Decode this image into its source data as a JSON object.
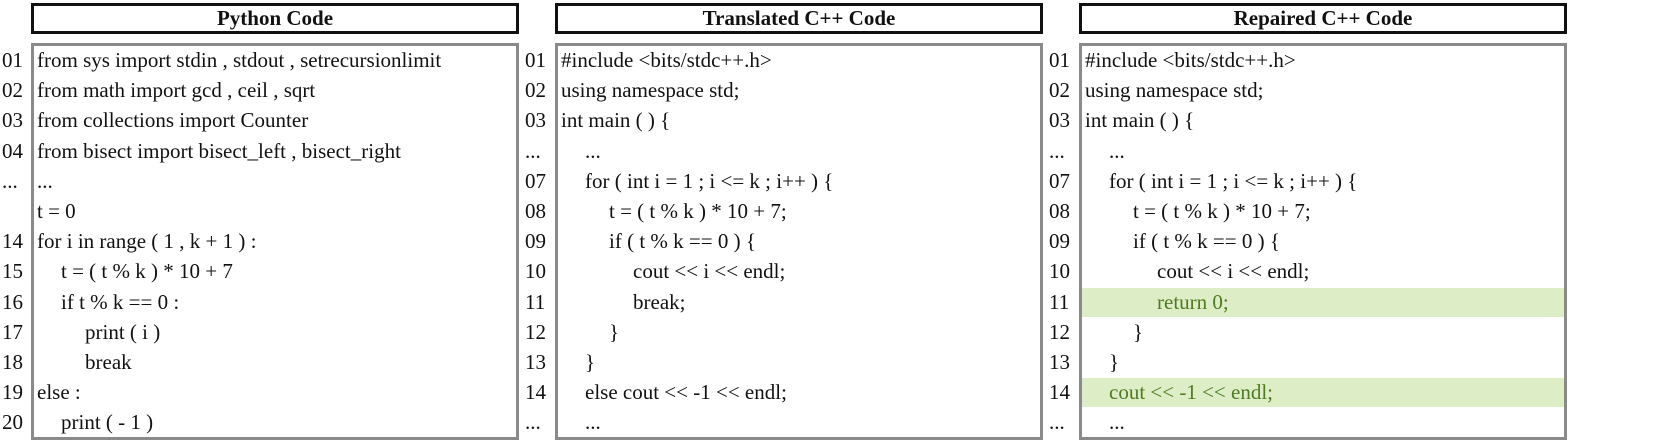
{
  "panels": [
    {
      "id": "python",
      "title": "Python Code",
      "lines": [
        {
          "no": "01",
          "text": "from sys import stdin , stdout , setrecursionlimit",
          "indent": 0,
          "highlight": false
        },
        {
          "no": "02",
          "text": "from math import gcd , ceil , sqrt",
          "indent": 0,
          "highlight": false
        },
        {
          "no": "03",
          "text": "from collections import Counter",
          "indent": 0,
          "highlight": false
        },
        {
          "no": "04",
          "text": "from bisect import bisect_left , bisect_right",
          "indent": 0,
          "highlight": false
        },
        {
          "no": "...",
          "text": "...",
          "indent": 0,
          "highlight": false
        },
        {
          "no": "",
          "text": "t = 0",
          "indent": 0,
          "highlight": false
        },
        {
          "no": "14",
          "text": "for i in range ( 1 , k + 1 ) :",
          "indent": 0,
          "highlight": false
        },
        {
          "no": "15",
          "text": "t = ( t % k ) * 10 + 7",
          "indent": 1,
          "highlight": false
        },
        {
          "no": "16",
          "text": "if t % k == 0 :",
          "indent": 1,
          "highlight": false
        },
        {
          "no": "17",
          "text": "print ( i )",
          "indent": 2,
          "highlight": false
        },
        {
          "no": "18",
          "text": "break",
          "indent": 2,
          "highlight": false
        },
        {
          "no": "19",
          "text": "else :",
          "indent": 0,
          "highlight": false
        },
        {
          "no": "20",
          "text": "print ( - 1 )",
          "indent": 1,
          "highlight": false
        }
      ]
    },
    {
      "id": "translated",
      "title": "Translated C++ Code",
      "lines": [
        {
          "no": "01",
          "text": "#include <bits/stdc++.h>",
          "indent": 0,
          "highlight": false
        },
        {
          "no": "02",
          "text": "using namespace std;",
          "indent": 0,
          "highlight": false
        },
        {
          "no": "03",
          "text": "int main ( ) {",
          "indent": 0,
          "highlight": false
        },
        {
          "no": "...",
          "text": "...",
          "indent": 1,
          "highlight": false
        },
        {
          "no": "07",
          "text": "for ( int i = 1 ; i <= k ; i++ ) {",
          "indent": 1,
          "highlight": false
        },
        {
          "no": "08",
          "text": "t = ( t % k ) * 10 + 7;",
          "indent": 2,
          "highlight": false
        },
        {
          "no": "09",
          "text": "if ( t % k == 0 ) {",
          "indent": 2,
          "highlight": false
        },
        {
          "no": "10",
          "text": "cout << i << endl;",
          "indent": 3,
          "highlight": false
        },
        {
          "no": "11",
          "text": "break;",
          "indent": 3,
          "highlight": false
        },
        {
          "no": "12",
          "text": "}",
          "indent": 2,
          "highlight": false
        },
        {
          "no": "13",
          "text": "}",
          "indent": 1,
          "highlight": false
        },
        {
          "no": "14",
          "text": "else cout << -1 << endl;",
          "indent": 1,
          "highlight": false
        },
        {
          "no": "...",
          "text": "...",
          "indent": 1,
          "highlight": false
        }
      ]
    },
    {
      "id": "repaired",
      "title": "Repaired C++ Code",
      "lines": [
        {
          "no": "01",
          "text": "#include <bits/stdc++.h>",
          "indent": 0,
          "highlight": false
        },
        {
          "no": "02",
          "text": "using namespace std;",
          "indent": 0,
          "highlight": false
        },
        {
          "no": "03",
          "text": "int main ( ) {",
          "indent": 0,
          "highlight": false
        },
        {
          "no": "...",
          "text": "...",
          "indent": 1,
          "highlight": false
        },
        {
          "no": "07",
          "text": "for ( int i = 1 ; i <= k ; i++ ) {",
          "indent": 1,
          "highlight": false
        },
        {
          "no": "08",
          "text": "t = ( t % k ) * 10 + 7;",
          "indent": 2,
          "highlight": false
        },
        {
          "no": "09",
          "text": "if ( t % k == 0 ) {",
          "indent": 2,
          "highlight": false
        },
        {
          "no": "10",
          "text": "cout << i << endl;",
          "indent": 3,
          "highlight": false
        },
        {
          "no": "11",
          "text": "return 0;",
          "indent": 3,
          "highlight": true
        },
        {
          "no": "12",
          "text": "}",
          "indent": 2,
          "highlight": false
        },
        {
          "no": "13",
          "text": "}",
          "indent": 1,
          "highlight": false
        },
        {
          "no": "14",
          "text": "cout << -1 << endl;",
          "indent": 1,
          "highlight": true
        },
        {
          "no": "...",
          "text": "...",
          "indent": 1,
          "highlight": false
        }
      ]
    }
  ],
  "colors": {
    "highlight_bg": "#ddeec6",
    "highlight_text": "#4f7a23",
    "box_border": "#8a8a8a",
    "header_border": "#111111"
  }
}
